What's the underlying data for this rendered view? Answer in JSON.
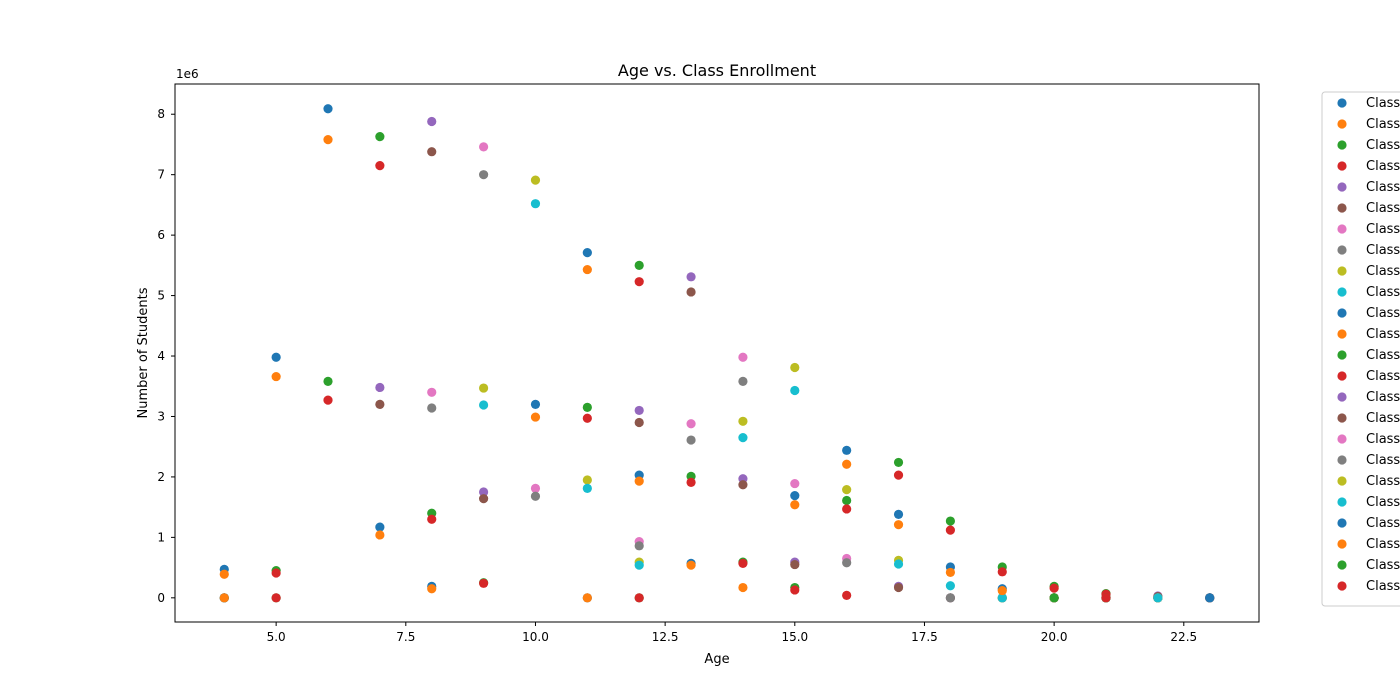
{
  "chart_data": {
    "type": "scatter",
    "title": "Age vs. Class Enrollment",
    "xlabel": "Age",
    "ylabel": "Number of Students",
    "y_offset_label": "1e6",
    "xlim": [
      3.05,
      23.95
    ],
    "ylim": [
      -400000,
      8500000
    ],
    "x_ticks": [
      5.0,
      7.5,
      10.0,
      12.5,
      15.0,
      17.5,
      20.0,
      22.5
    ],
    "x_tick_labels": [
      "5.0",
      "7.5",
      "10.0",
      "12.5",
      "15.0",
      "17.5",
      "20.0",
      "22.5"
    ],
    "y_ticks": [
      0,
      1000000,
      2000000,
      3000000,
      4000000,
      5000000,
      6000000,
      7000000,
      8000000
    ],
    "y_tick_labels": [
      "0",
      "1",
      "2",
      "3",
      "4",
      "5",
      "6",
      "7",
      "8"
    ],
    "grid": false,
    "legend_position": "outside-right",
    "series": [
      {
        "name": "Class",
        "color": "#1f77b4",
        "points": [
          [
            4,
            470000
          ],
          [
            6,
            8090000
          ],
          [
            11,
            5710000
          ],
          [
            16,
            2440000
          ],
          [
            20,
            0
          ],
          [
            21,
            0
          ],
          [
            22,
            0
          ],
          [
            23,
            0
          ]
        ]
      },
      {
        "name": "Class",
        "color": "#ff7f0e",
        "points": [
          [
            4,
            390000
          ],
          [
            6,
            7580000
          ],
          [
            11,
            5430000
          ],
          [
            16,
            2210000
          ],
          [
            20,
            0
          ],
          [
            21,
            0
          ],
          [
            22,
            0
          ],
          [
            23,
            0
          ]
        ]
      },
      {
        "name": "Class",
        "color": "#2ca02c",
        "points": [
          [
            5,
            450000
          ],
          [
            7,
            7630000
          ],
          [
            12,
            5500000
          ],
          [
            17,
            2240000
          ],
          [
            20,
            0
          ],
          [
            21,
            0
          ],
          [
            22,
            0
          ],
          [
            23,
            0
          ]
        ]
      },
      {
        "name": "Class",
        "color": "#d62728",
        "points": [
          [
            5,
            410000
          ],
          [
            7,
            7150000
          ],
          [
            12,
            5230000
          ],
          [
            17,
            2030000
          ],
          [
            20,
            0
          ],
          [
            21,
            0
          ],
          [
            22,
            0
          ],
          [
            23,
            0
          ]
        ]
      },
      {
        "name": "Class",
        "color": "#9467bd",
        "points": [
          [
            4,
            0
          ],
          [
            8,
            7880000
          ],
          [
            13,
            5310000
          ],
          [
            18,
            0
          ],
          [
            20,
            0
          ],
          [
            21,
            0
          ],
          [
            22,
            0
          ],
          [
            23,
            0
          ]
        ]
      },
      {
        "name": "Class",
        "color": "#8c564b",
        "points": [
          [
            4,
            0
          ],
          [
            8,
            7380000
          ],
          [
            13,
            5060000
          ],
          [
            18,
            0
          ],
          [
            20,
            0
          ],
          [
            21,
            0
          ],
          [
            22,
            0
          ],
          [
            23,
            0
          ]
        ]
      },
      {
        "name": "Class",
        "color": "#e377c2",
        "points": [
          [
            4,
            0
          ],
          [
            9,
            7460000
          ],
          [
            14,
            3980000
          ],
          [
            19,
            0
          ],
          [
            20,
            0
          ],
          [
            21,
            0
          ],
          [
            22,
            0
          ],
          [
            23,
            0
          ]
        ]
      },
      {
        "name": "Class",
        "color": "#7f7f7f",
        "points": [
          [
            4,
            0
          ],
          [
            9,
            7000000
          ],
          [
            14,
            3580000
          ],
          [
            19,
            0
          ],
          [
            20,
            0
          ],
          [
            21,
            0
          ],
          [
            22,
            0
          ],
          [
            23,
            0
          ]
        ]
      },
      {
        "name": "Class",
        "color": "#bcbd22",
        "points": [
          [
            4,
            0
          ],
          [
            10,
            6910000
          ],
          [
            15,
            3810000
          ],
          [
            19,
            0
          ],
          [
            20,
            0
          ],
          [
            21,
            0
          ],
          [
            22,
            0
          ],
          [
            23,
            0
          ]
        ]
      },
      {
        "name": "Class",
        "color": "#17becf",
        "points": [
          [
            4,
            0
          ],
          [
            10,
            6520000
          ],
          [
            15,
            3430000
          ],
          [
            19,
            0
          ],
          [
            20,
            0
          ],
          [
            21,
            0
          ],
          [
            22,
            0
          ],
          [
            23,
            0
          ]
        ]
      },
      {
        "name": "Class",
        "color": "#1f77b4",
        "points": [
          [
            5,
            3980000
          ],
          [
            10,
            3200000
          ],
          [
            12,
            2030000
          ],
          [
            15,
            1690000
          ],
          [
            17,
            1380000
          ],
          [
            18,
            510000
          ],
          [
            20,
            0
          ],
          [
            23,
            0
          ]
        ]
      },
      {
        "name": "Class",
        "color": "#ff7f0e",
        "points": [
          [
            5,
            3660000
          ],
          [
            10,
            2990000
          ],
          [
            12,
            1930000
          ],
          [
            15,
            1540000
          ],
          [
            17,
            1210000
          ],
          [
            18,
            420000
          ],
          [
            20,
            0
          ],
          [
            23,
            0
          ]
        ]
      },
      {
        "name": "Class",
        "color": "#2ca02c",
        "points": [
          [
            6,
            3580000
          ],
          [
            11,
            3150000
          ],
          [
            13,
            2010000
          ],
          [
            16,
            1610000
          ],
          [
            18,
            1270000
          ],
          [
            19,
            510000
          ],
          [
            20,
            190000
          ],
          [
            21,
            70000
          ]
        ]
      },
      {
        "name": "Class",
        "color": "#d62728",
        "points": [
          [
            6,
            3270000
          ],
          [
            11,
            2970000
          ],
          [
            13,
            1910000
          ],
          [
            16,
            1470000
          ],
          [
            18,
            1120000
          ],
          [
            19,
            430000
          ],
          [
            20,
            160000
          ],
          [
            21,
            60000
          ]
        ]
      },
      {
        "name": "Class",
        "color": "#9467bd",
        "points": [
          [
            7,
            3480000
          ],
          [
            9,
            1750000
          ],
          [
            12,
            3100000
          ],
          [
            14,
            1970000
          ],
          [
            15,
            590000
          ],
          [
            17,
            190000
          ],
          [
            22,
            30000
          ],
          [
            23,
            0
          ]
        ]
      },
      {
        "name": "Class",
        "color": "#8c564b",
        "points": [
          [
            7,
            3200000
          ],
          [
            9,
            1640000
          ],
          [
            12,
            2900000
          ],
          [
            14,
            1870000
          ],
          [
            15,
            550000
          ],
          [
            17,
            170000
          ],
          [
            22,
            20000
          ],
          [
            23,
            0
          ]
        ]
      },
      {
        "name": "Class",
        "color": "#e377c2",
        "points": [
          [
            8,
            3400000
          ],
          [
            10,
            1810000
          ],
          [
            12,
            930000
          ],
          [
            13,
            2880000
          ],
          [
            15,
            1890000
          ],
          [
            16,
            650000
          ],
          [
            19,
            0
          ],
          [
            22,
            0
          ]
        ]
      },
      {
        "name": "Class",
        "color": "#7f7f7f",
        "points": [
          [
            8,
            3140000
          ],
          [
            10,
            1680000
          ],
          [
            12,
            860000
          ],
          [
            13,
            2610000
          ],
          [
            16,
            580000
          ],
          [
            18,
            0
          ],
          [
            19,
            0
          ],
          [
            22,
            0
          ]
        ]
      },
      {
        "name": "Class",
        "color": "#bcbd22",
        "points": [
          [
            9,
            3470000
          ],
          [
            11,
            1950000
          ],
          [
            12,
            590000
          ],
          [
            14,
            2920000
          ],
          [
            16,
            1790000
          ],
          [
            17,
            620000
          ],
          [
            19,
            0
          ],
          [
            22,
            0
          ]
        ]
      },
      {
        "name": "Class",
        "color": "#17becf",
        "points": [
          [
            9,
            3190000
          ],
          [
            11,
            1810000
          ],
          [
            12,
            540000
          ],
          [
            14,
            2650000
          ],
          [
            17,
            560000
          ],
          [
            18,
            200000
          ],
          [
            19,
            0
          ],
          [
            22,
            0
          ]
        ]
      },
      {
        "name": "Class",
        "color": "#1f77b4",
        "points": [
          [
            4,
            0
          ],
          [
            7,
            1170000
          ],
          [
            8,
            190000
          ],
          [
            11,
            0
          ],
          [
            13,
            570000
          ],
          [
            19,
            150000
          ],
          [
            20,
            0
          ],
          [
            23,
            0
          ]
        ]
      },
      {
        "name": "Class",
        "color": "#ff7f0e",
        "points": [
          [
            4,
            0
          ],
          [
            7,
            1040000
          ],
          [
            8,
            150000
          ],
          [
            11,
            0
          ],
          [
            13,
            540000
          ],
          [
            14,
            170000
          ],
          [
            19,
            120000
          ],
          [
            20,
            0
          ]
        ]
      },
      {
        "name": "Class",
        "color": "#2ca02c",
        "points": [
          [
            5,
            0
          ],
          [
            8,
            1400000
          ],
          [
            9,
            250000
          ],
          [
            12,
            0
          ],
          [
            14,
            590000
          ],
          [
            15,
            170000
          ],
          [
            20,
            0
          ],
          [
            21,
            0
          ]
        ]
      },
      {
        "name": "Class",
        "color": "#d62728",
        "points": [
          [
            5,
            0
          ],
          [
            8,
            1300000
          ],
          [
            9,
            240000
          ],
          [
            12,
            0
          ],
          [
            14,
            570000
          ],
          [
            15,
            130000
          ],
          [
            16,
            40000
          ],
          [
            21,
            0
          ]
        ]
      }
    ]
  }
}
